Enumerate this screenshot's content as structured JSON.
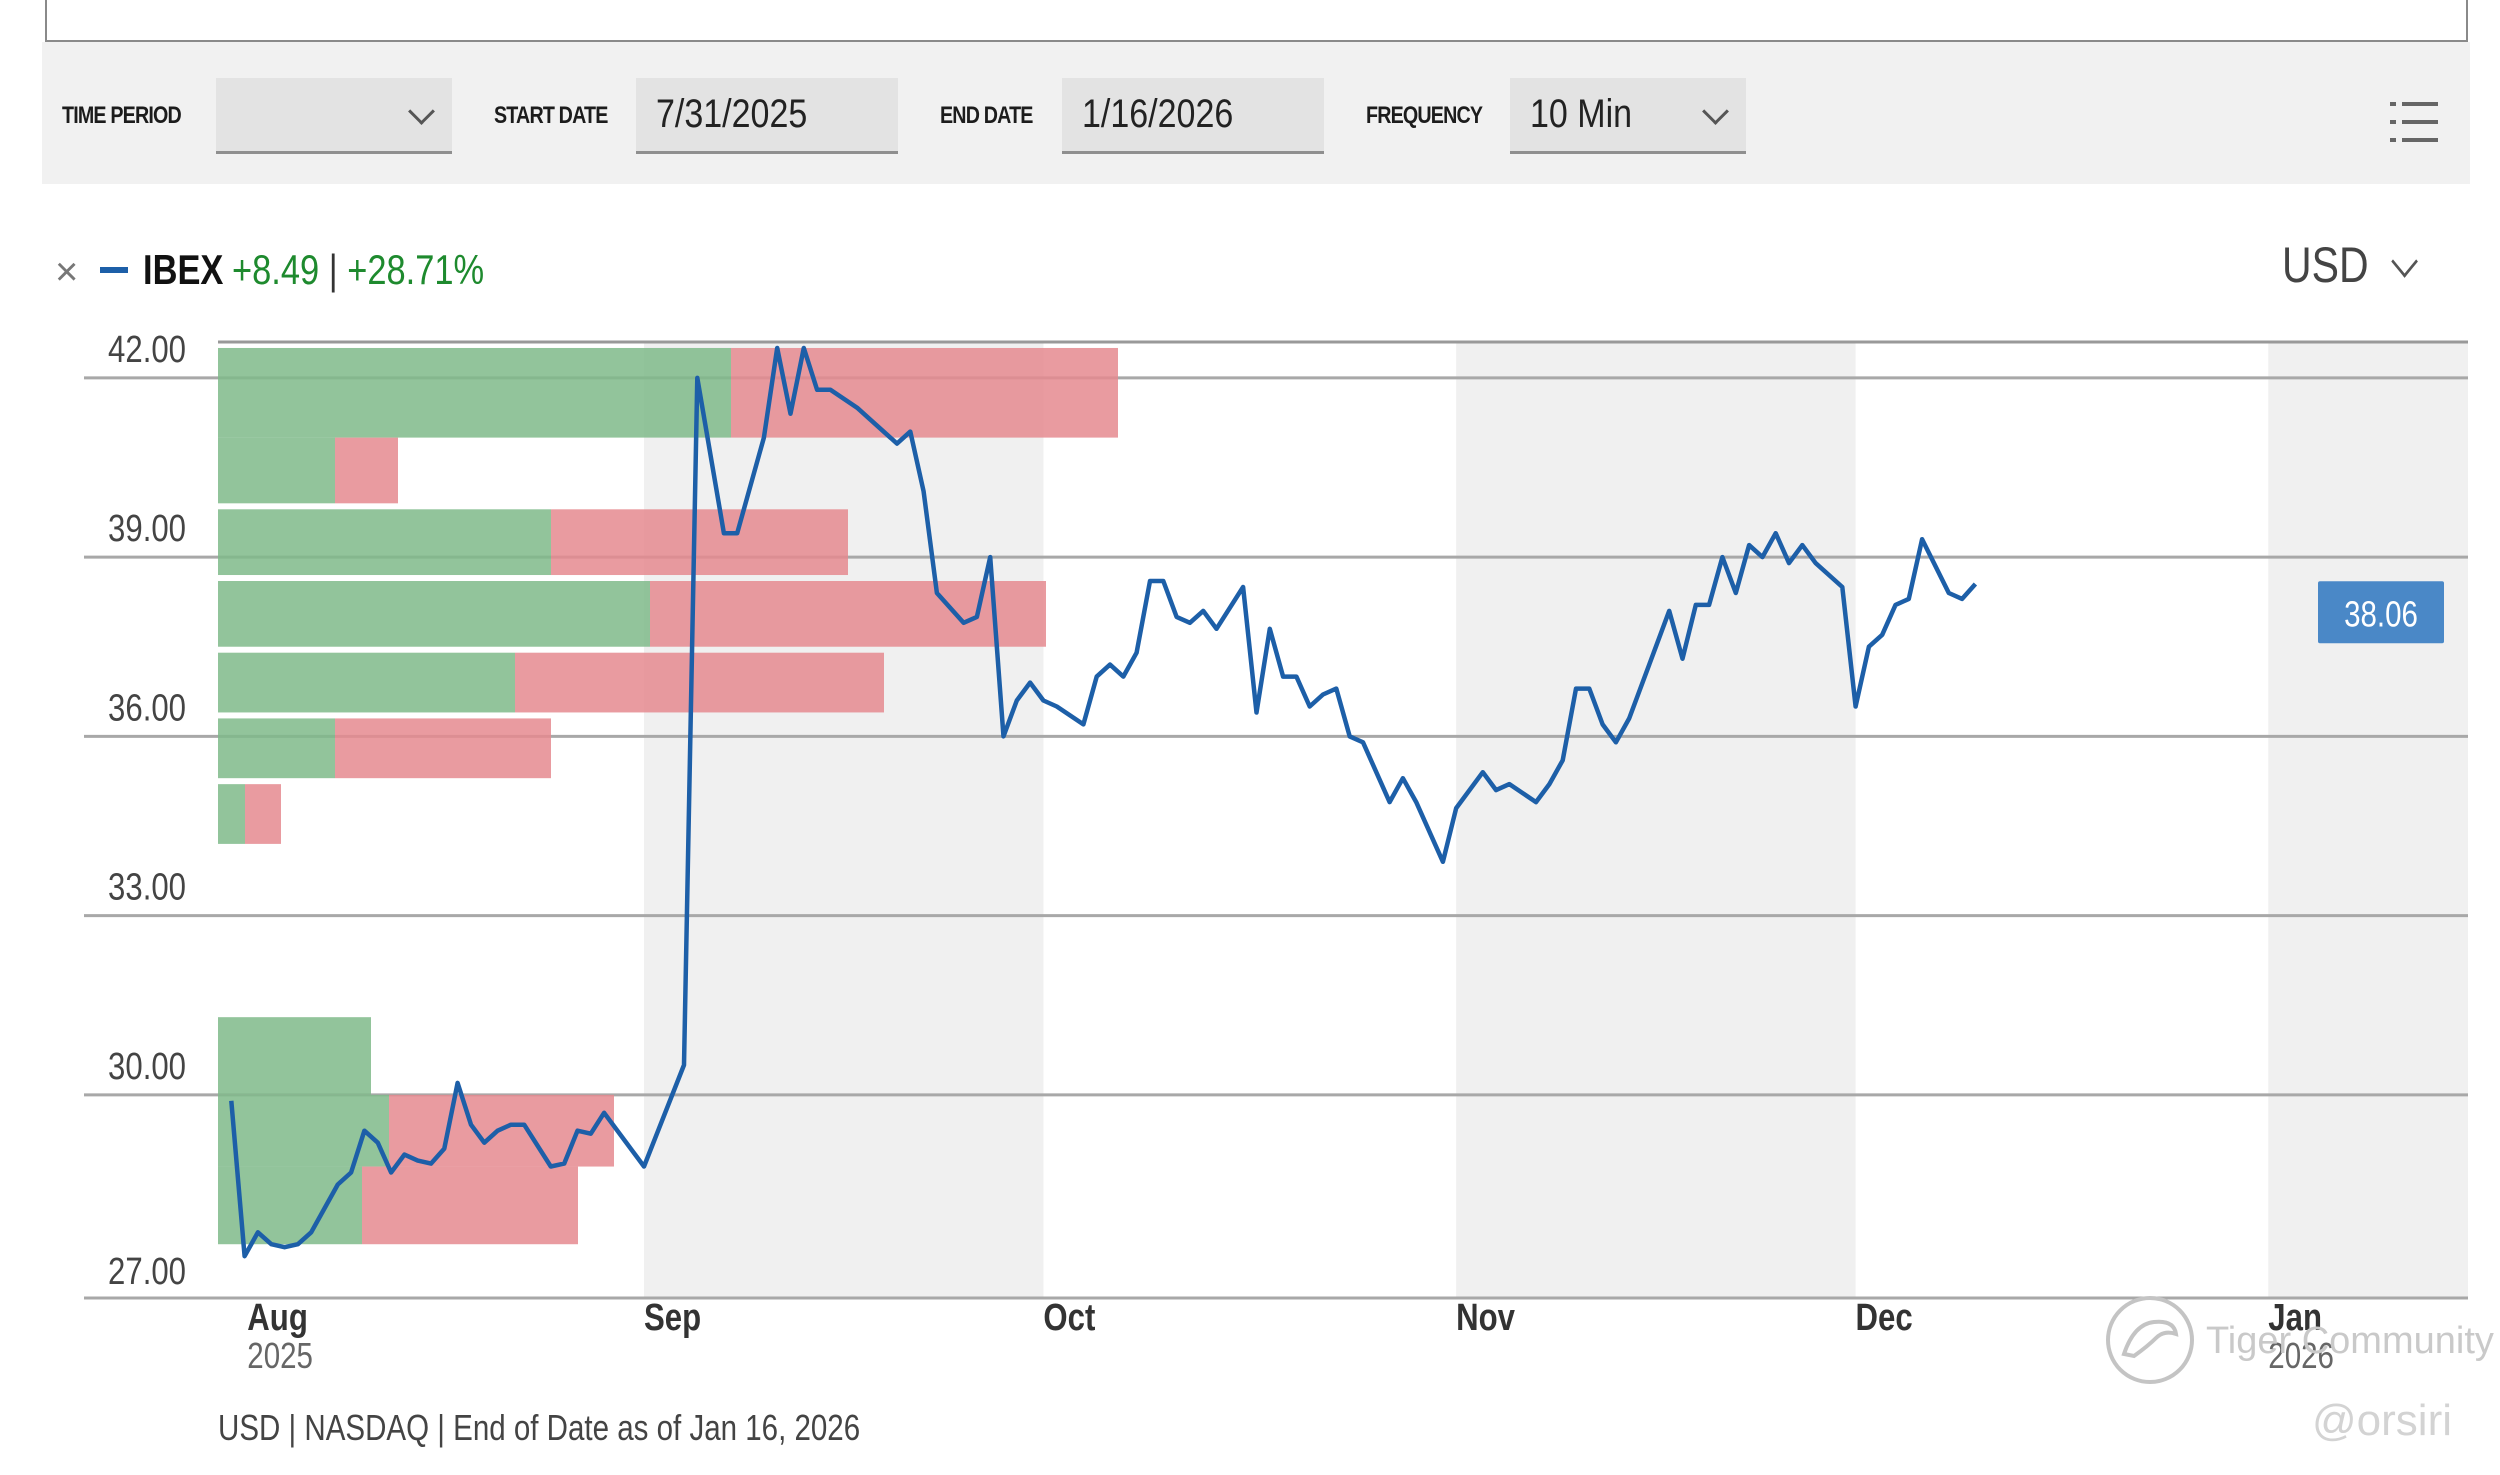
{
  "toolbar": {
    "time_period_label": "TIME PERIOD",
    "time_period_value": "",
    "start_date_label": "START DATE",
    "start_date_value": "7/31/2025",
    "end_date_label": "END DATE",
    "end_date_value": "1/16/2026",
    "frequency_label": "FREQUENCY",
    "frequency_value": "10 Min",
    "menu_icon": "list-menu-icon"
  },
  "legend": {
    "ticker": "IBEX",
    "change_abs": "+8.49",
    "change_sep": "|",
    "change_pct": "+28.71%",
    "close_icon": "close-icon",
    "color": "#1d5fa8"
  },
  "currency": "USD",
  "footer": "USD | NASDAQ | End of Date as of Jan 16, 2026",
  "watermark": {
    "text": "Tiger Community",
    "handle": "@orsiri"
  },
  "colors": {
    "line": "#1d5fa8",
    "buy_volume": "#7fba89",
    "sell_volume": "#e58a8f",
    "month_shade": "#f0f0f0",
    "positive": "#1e8a2e",
    "last_price_badge": "#4a88c7"
  },
  "chart_data": {
    "type": "line",
    "series": [
      {
        "name": "IBEX",
        "points": [
          [
            "2025-08-01",
            29.9
          ],
          [
            "2025-08-02",
            27.3
          ],
          [
            "2025-08-03",
            27.7
          ],
          [
            "2025-08-04",
            27.5
          ],
          [
            "2025-08-05",
            27.45
          ],
          [
            "2025-08-06",
            27.5
          ],
          [
            "2025-08-07",
            27.7
          ],
          [
            "2025-08-08",
            28.1
          ],
          [
            "2025-08-09",
            28.5
          ],
          [
            "2025-08-10",
            28.7
          ],
          [
            "2025-08-11",
            29.4
          ],
          [
            "2025-08-12",
            29.2
          ],
          [
            "2025-08-13",
            28.7
          ],
          [
            "2025-08-14",
            29.0
          ],
          [
            "2025-08-15",
            28.9
          ],
          [
            "2025-08-16",
            28.85
          ],
          [
            "2025-08-17",
            29.1
          ],
          [
            "2025-08-18",
            30.2
          ],
          [
            "2025-08-19",
            29.5
          ],
          [
            "2025-08-20",
            29.2
          ],
          [
            "2025-08-21",
            29.4
          ],
          [
            "2025-08-22",
            29.5
          ],
          [
            "2025-08-23",
            29.5
          ],
          [
            "2025-08-25",
            28.8
          ],
          [
            "2025-08-26",
            28.85
          ],
          [
            "2025-08-27",
            29.4
          ],
          [
            "2025-08-28",
            29.35
          ],
          [
            "2025-08-29",
            29.7
          ],
          [
            "2025-09-01",
            28.8
          ],
          [
            "2025-09-04",
            30.5
          ],
          [
            "2025-09-05",
            42.0
          ],
          [
            "2025-09-07",
            39.4
          ],
          [
            "2025-09-08",
            39.4
          ],
          [
            "2025-09-10",
            41.0
          ],
          [
            "2025-09-11",
            42.5
          ],
          [
            "2025-09-12",
            41.4
          ],
          [
            "2025-09-13",
            42.5
          ],
          [
            "2025-09-14",
            41.8
          ],
          [
            "2025-09-15",
            41.8
          ],
          [
            "2025-09-17",
            41.5
          ],
          [
            "2025-09-18",
            41.3
          ],
          [
            "2025-09-20",
            40.9
          ],
          [
            "2025-09-21",
            41.1
          ],
          [
            "2025-09-22",
            40.1
          ],
          [
            "2025-09-23",
            38.4
          ],
          [
            "2025-09-25",
            37.9
          ],
          [
            "2025-09-26",
            38.0
          ],
          [
            "2025-09-27",
            39.0
          ],
          [
            "2025-09-28",
            36.0
          ],
          [
            "2025-09-29",
            36.6
          ],
          [
            "2025-09-30",
            36.9
          ],
          [
            "2025-10-01",
            36.6
          ],
          [
            "2025-10-02",
            36.5
          ],
          [
            "2025-10-04",
            36.2
          ],
          [
            "2025-10-05",
            37.0
          ],
          [
            "2025-10-06",
            37.2
          ],
          [
            "2025-10-07",
            37.0
          ],
          [
            "2025-10-08",
            37.4
          ],
          [
            "2025-10-09",
            38.6
          ],
          [
            "2025-10-10",
            38.6
          ],
          [
            "2025-10-11",
            38.0
          ],
          [
            "2025-10-12",
            37.9
          ],
          [
            "2025-10-13",
            38.1
          ],
          [
            "2025-10-14",
            37.8
          ],
          [
            "2025-10-16",
            38.5
          ],
          [
            "2025-10-17",
            36.4
          ],
          [
            "2025-10-18",
            37.8
          ],
          [
            "2025-10-19",
            37.0
          ],
          [
            "2025-10-20",
            37.0
          ],
          [
            "2025-10-21",
            36.5
          ],
          [
            "2025-10-22",
            36.7
          ],
          [
            "2025-10-23",
            36.8
          ],
          [
            "2025-10-24",
            36.0
          ],
          [
            "2025-10-25",
            35.9
          ],
          [
            "2025-10-27",
            34.9
          ],
          [
            "2025-10-28",
            35.3
          ],
          [
            "2025-10-29",
            34.9
          ],
          [
            "2025-10-31",
            33.9
          ],
          [
            "2025-11-01",
            34.8
          ],
          [
            "2025-11-03",
            35.4
          ],
          [
            "2025-11-04",
            35.1
          ],
          [
            "2025-11-05",
            35.2
          ],
          [
            "2025-11-07",
            34.9
          ],
          [
            "2025-11-08",
            35.2
          ],
          [
            "2025-11-09",
            35.6
          ],
          [
            "2025-11-10",
            36.8
          ],
          [
            "2025-11-11",
            36.8
          ],
          [
            "2025-11-12",
            36.2
          ],
          [
            "2025-11-13",
            35.9
          ],
          [
            "2025-11-14",
            36.3
          ],
          [
            "2025-11-16",
            37.5
          ],
          [
            "2025-11-17",
            38.1
          ],
          [
            "2025-11-18",
            37.3
          ],
          [
            "2025-11-19",
            38.2
          ],
          [
            "2025-11-20",
            38.2
          ],
          [
            "2025-11-21",
            39.0
          ],
          [
            "2025-11-22",
            38.4
          ],
          [
            "2025-11-23",
            39.2
          ],
          [
            "2025-11-24",
            39.0
          ],
          [
            "2025-11-25",
            39.4
          ],
          [
            "2025-11-26",
            38.9
          ],
          [
            "2025-11-27",
            39.2
          ],
          [
            "2025-11-28",
            38.9
          ],
          [
            "2025-11-30",
            38.5
          ],
          [
            "2025-12-01",
            36.5
          ],
          [
            "2025-12-02",
            37.5
          ],
          [
            "2025-12-03",
            37.7
          ],
          [
            "2025-12-04",
            38.2
          ],
          [
            "2025-12-05",
            38.3
          ],
          [
            "2025-12-06",
            39.3
          ],
          [
            "2025-12-08",
            38.4
          ],
          [
            "2025-12-09",
            38.3
          ],
          [
            "2025-12-10",
            38.55
          ]
        ]
      }
    ],
    "volume_by_price": [
      {
        "price_low": 41.0,
        "price_high": 42.5,
        "buy": 57,
        "sell": 43
      },
      {
        "price_low": 39.9,
        "price_high": 41.0,
        "buy": 13,
        "sell": 7
      },
      {
        "price_low": 38.7,
        "price_high": 39.8,
        "buy": 37,
        "sell": 33
      },
      {
        "price_low": 37.5,
        "price_high": 38.6,
        "buy": 48,
        "sell": 44
      },
      {
        "price_low": 36.4,
        "price_high": 37.4,
        "buy": 33,
        "sell": 41
      },
      {
        "price_low": 35.3,
        "price_high": 36.3,
        "buy": 13,
        "sell": 24
      },
      {
        "price_low": 34.2,
        "price_high": 35.2,
        "buy": 3,
        "sell": 4
      },
      {
        "price_low": 30.0,
        "price_high": 31.3,
        "buy": 17,
        "sell": 0
      },
      {
        "price_low": 28.8,
        "price_high": 30.0,
        "buy": 19,
        "sell": 25
      },
      {
        "price_low": 27.5,
        "price_high": 28.8,
        "buy": 16,
        "sell": 24
      }
    ],
    "x_ticks": [
      {
        "date": "2025-08-01",
        "label": "Aug",
        "sub": "2025"
      },
      {
        "date": "2025-09-01",
        "label": "Sep",
        "sub": ""
      },
      {
        "date": "2025-10-01",
        "label": "Oct",
        "sub": ""
      },
      {
        "date": "2025-11-01",
        "label": "Nov",
        "sub": ""
      },
      {
        "date": "2025-12-01",
        "label": "Dec",
        "sub": ""
      },
      {
        "date": "2026-01-01",
        "label": "Jan",
        "sub": "2026"
      }
    ],
    "y_ticks": [
      {
        "value": 42,
        "label": "42.00"
      },
      {
        "value": 39,
        "label": "39.00"
      },
      {
        "value": 36,
        "label": "36.00"
      },
      {
        "value": 33,
        "label": "33.00"
      },
      {
        "value": 30,
        "label": "30.00"
      },
      {
        "value": 27,
        "label": "27.00"
      }
    ],
    "ylim": [
      26.6,
      42.6
    ],
    "xlim": [
      "2025-07-31",
      "2026-01-16"
    ],
    "shaded_months": [
      [
        "2025-09-01",
        "2025-10-01"
      ],
      [
        "2025-11-01",
        "2025-12-01"
      ],
      [
        "2026-01-01",
        "2026-01-16"
      ]
    ],
    "last_value": 38.06,
    "last_value_label": "38.06",
    "grid": true
  }
}
